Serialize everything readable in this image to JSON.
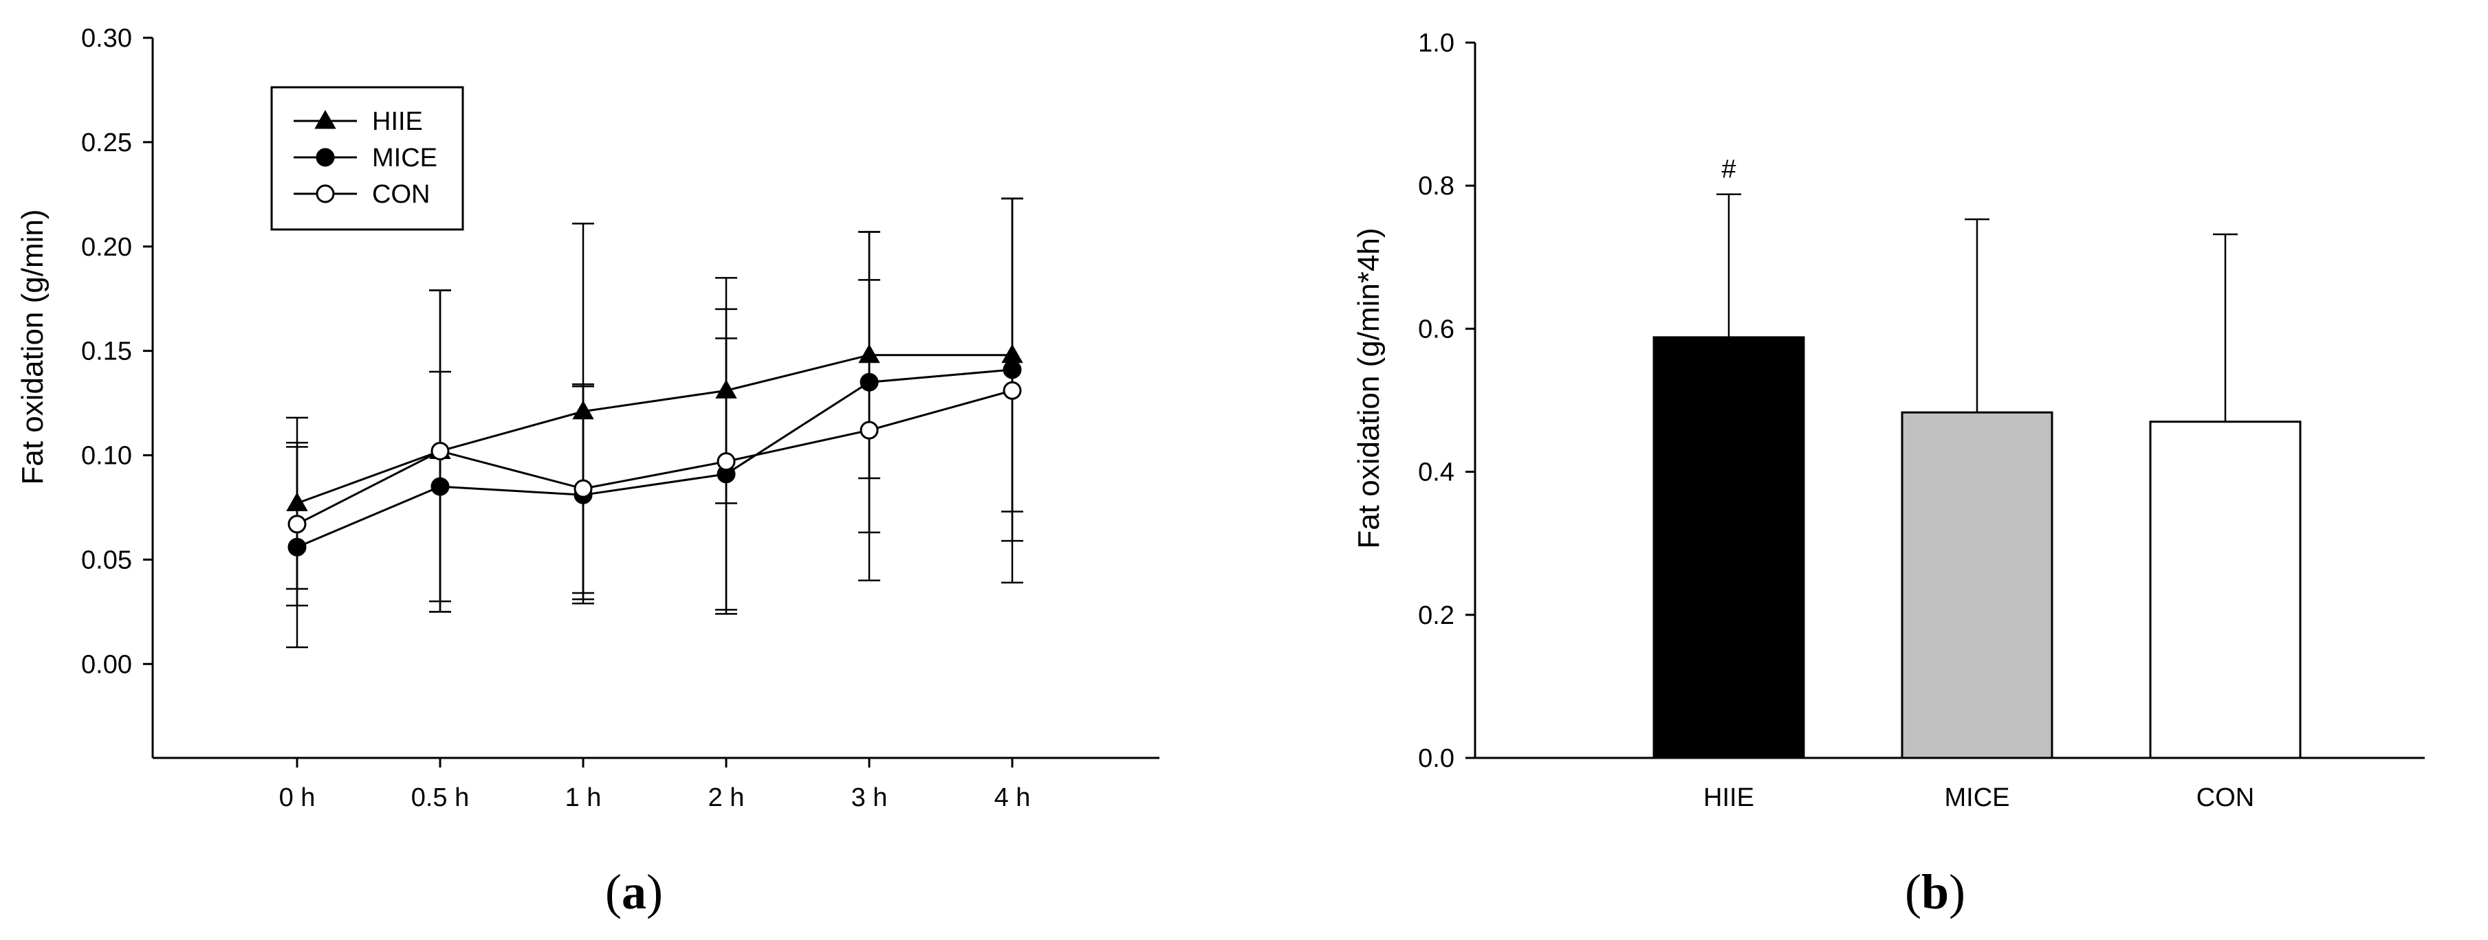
{
  "chart_data": [
    {
      "panel": "(a)",
      "type": "line",
      "ylabel": "Fat oxidation (g/min)",
      "xlabel": "",
      "categories": [
        "0 h",
        "0.5 h",
        "1 h",
        "2 h",
        "3 h",
        "4 h"
      ],
      "ylim": [
        -0.045,
        0.3
      ],
      "yticks": [
        "0.00",
        "0.05",
        "0.10",
        "0.15",
        "0.20",
        "0.25",
        "0.30"
      ],
      "legend_position": "top-left",
      "grid": false,
      "series": [
        {
          "name": "HIIE",
          "marker": "triangle-filled",
          "values": [
            0.077,
            0.102,
            0.121,
            0.131,
            0.148,
            0.148
          ],
          "errors": [
            0.041,
            0.077,
            0.09,
            0.054,
            0.059,
            0.075
          ]
        },
        {
          "name": "MICE",
          "marker": "circle-filled",
          "values": [
            0.056,
            0.085,
            0.081,
            0.091,
            0.135,
            0.141
          ],
          "errors": [
            0.048,
            0.055,
            0.052,
            0.065,
            0.072,
            0.082
          ]
        },
        {
          "name": "CON",
          "marker": "circle-open",
          "values": [
            0.067,
            0.102,
            0.084,
            0.097,
            0.112,
            0.131
          ],
          "errors": [
            0.039,
            0.077,
            0.05,
            0.073,
            0.072,
            0.092
          ]
        }
      ]
    },
    {
      "panel": "(b)",
      "type": "bar",
      "ylabel": "Fat oxidation (g/min*4h)",
      "xlabel": "",
      "categories": [
        "HIIE",
        "MICE",
        "CON"
      ],
      "values": [
        0.588,
        0.483,
        0.47
      ],
      "errors": [
        0.2,
        0.27,
        0.262
      ],
      "bar_colors": [
        "#000000",
        "#c0c0c0",
        "#ffffff"
      ],
      "annotations": [
        {
          "category": "HIIE",
          "text": "#"
        }
      ],
      "ylim": [
        0,
        1.0
      ],
      "yticks": [
        "0.0",
        "0.2",
        "0.4",
        "0.6",
        "0.8",
        "1.0"
      ],
      "grid": false
    }
  ]
}
